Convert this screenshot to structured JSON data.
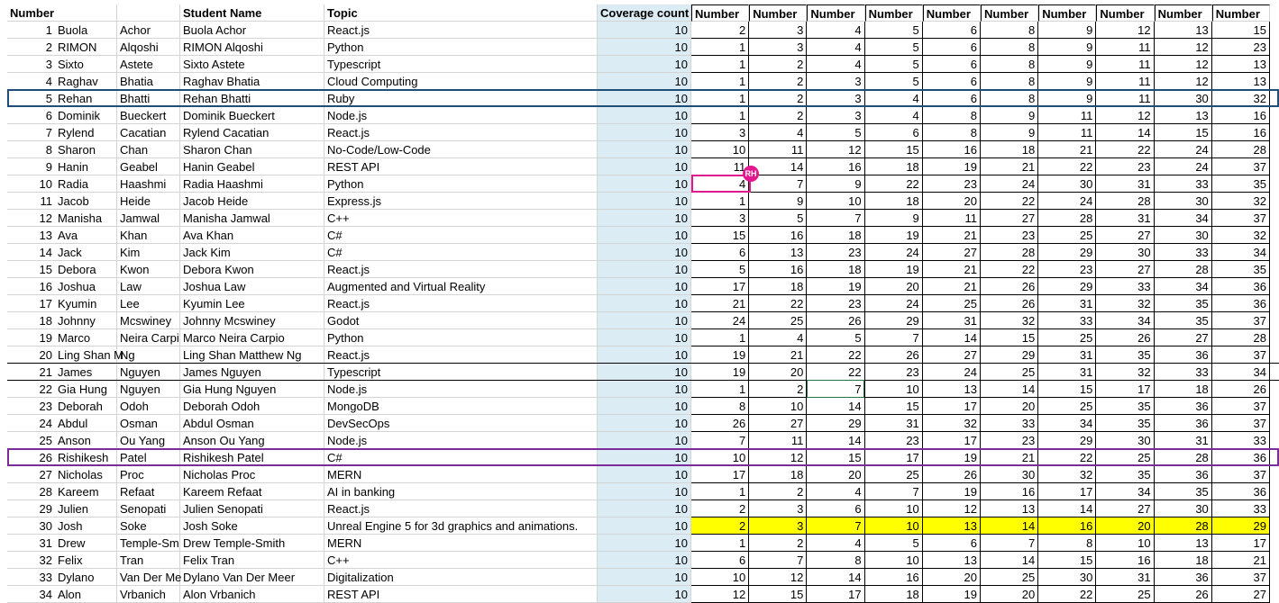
{
  "headers": {
    "number": "Number",
    "first": "",
    "last": "",
    "student_name": "Student Name",
    "topic": "Topic",
    "coverage": "Coverage count",
    "n": [
      "Number",
      "Number",
      "Number",
      "Number",
      "Number",
      "Number",
      "Number",
      "Number",
      "Number",
      "Number"
    ]
  },
  "avatar_initials": "RH",
  "colors": {
    "coverage_fill": "#dbecf4",
    "yellow": "#ffff00",
    "row_box_blue": "#1f4e79",
    "row_box_purple": "#7b2c9a",
    "presence_pink": "#e3178f"
  },
  "rows": [
    {
      "num": "1",
      "first": "Buola",
      "last": "Achor",
      "name": "Buola Achor",
      "topic": "React.js",
      "cov": "10",
      "n": [
        "2",
        "3",
        "4",
        "5",
        "6",
        "8",
        "9",
        "12",
        "13",
        "15"
      ]
    },
    {
      "num": "2",
      "first": "RIMON",
      "last": "Alqoshi",
      "name": "RIMON Alqoshi",
      "topic": "Python",
      "cov": "10",
      "n": [
        "1",
        "3",
        "4",
        "5",
        "6",
        "8",
        "9",
        "11",
        "12",
        "23"
      ]
    },
    {
      "num": "3",
      "first": "Sixto",
      "last": "Astete",
      "name": "Sixto Astete",
      "topic": "Typescript",
      "cov": "10",
      "n": [
        "1",
        "2",
        "4",
        "5",
        "6",
        "8",
        "9",
        "11",
        "12",
        "13"
      ]
    },
    {
      "num": "4",
      "first": "Raghav",
      "last": "Bhatia",
      "name": "Raghav Bhatia",
      "topic": "Cloud Computing",
      "cov": "10",
      "n": [
        "1",
        "2",
        "3",
        "5",
        "6",
        "8",
        "9",
        "11",
        "12",
        "13"
      ]
    },
    {
      "num": "5",
      "first": "Rehan",
      "last": "Bhatti",
      "name": "Rehan Bhatti",
      "topic": "Ruby",
      "cov": "10",
      "n": [
        "1",
        "2",
        "3",
        "4",
        "6",
        "8",
        "9",
        "11",
        "30",
        "32"
      ]
    },
    {
      "num": "6",
      "first": "Dominik",
      "last": "Bueckert",
      "name": "Dominik Bueckert",
      "topic": "Node.js",
      "cov": "10",
      "n": [
        "1",
        "2",
        "3",
        "4",
        "8",
        "9",
        "11",
        "12",
        "13",
        "16"
      ]
    },
    {
      "num": "7",
      "first": "Rylend",
      "last": "Cacatian",
      "name": "Rylend Cacatian",
      "topic": "React.js",
      "cov": "10",
      "n": [
        "3",
        "4",
        "5",
        "6",
        "8",
        "9",
        "11",
        "14",
        "15",
        "16"
      ]
    },
    {
      "num": "8",
      "first": "Sharon",
      "last": "Chan",
      "name": "Sharon Chan",
      "topic": "No-Code/Low-Code",
      "cov": "10",
      "n": [
        "10",
        "11",
        "12",
        "15",
        "16",
        "18",
        "21",
        "22",
        "24",
        "28"
      ]
    },
    {
      "num": "9",
      "first": "Hanin",
      "last": "Geabel",
      "name": "Hanin Geabel",
      "topic": "REST API",
      "cov": "10",
      "n": [
        "11",
        "14",
        "16",
        "18",
        "19",
        "21",
        "22",
        "23",
        "24",
        "37"
      ]
    },
    {
      "num": "10",
      "first": "Radia",
      "last": "Haashmi",
      "name": "Radia Haashmi",
      "topic": "Python",
      "cov": "10",
      "n": [
        "4",
        "7",
        "9",
        "22",
        "23",
        "24",
        "30",
        "31",
        "33",
        "35"
      ]
    },
    {
      "num": "11",
      "first": "Jacob",
      "last": "Heide",
      "name": "Jacob Heide",
      "topic": "Express.js",
      "cov": "10",
      "n": [
        "1",
        "9",
        "10",
        "18",
        "20",
        "22",
        "24",
        "28",
        "30",
        "32"
      ]
    },
    {
      "num": "12",
      "first": "Manisha",
      "last": "Jamwal",
      "name": "Manisha Jamwal",
      "topic": "C++",
      "cov": "10",
      "n": [
        "3",
        "5",
        "7",
        "9",
        "11",
        "27",
        "28",
        "31",
        "34",
        "37"
      ]
    },
    {
      "num": "13",
      "first": "Ava",
      "last": "Khan",
      "name": "Ava Khan",
      "topic": "C#",
      "cov": "10",
      "n": [
        "15",
        "16",
        "18",
        "19",
        "21",
        "23",
        "25",
        "27",
        "30",
        "32"
      ]
    },
    {
      "num": "14",
      "first": "Jack",
      "last": "Kim",
      "name": "Jack Kim",
      "topic": "C#",
      "cov": "10",
      "n": [
        "6",
        "13",
        "23",
        "24",
        "27",
        "28",
        "29",
        "30",
        "33",
        "34"
      ]
    },
    {
      "num": "15",
      "first": "Debora",
      "last": "Kwon",
      "name": "Debora Kwon",
      "topic": "React.js",
      "cov": "10",
      "n": [
        "5",
        "16",
        "18",
        "19",
        "21",
        "22",
        "23",
        "27",
        "28",
        "35"
      ]
    },
    {
      "num": "16",
      "first": "Joshua",
      "last": "Law",
      "name": "Joshua Law",
      "topic": "Augmented and Virtual Reality",
      "cov": "10",
      "n": [
        "17",
        "18",
        "19",
        "20",
        "21",
        "26",
        "29",
        "33",
        "34",
        "36"
      ]
    },
    {
      "num": "17",
      "first": "Kyumin",
      "last": "Lee",
      "name": "Kyumin Lee",
      "topic": "React.js",
      "cov": "10",
      "n": [
        "21",
        "22",
        "23",
        "24",
        "25",
        "26",
        "31",
        "32",
        "35",
        "36"
      ]
    },
    {
      "num": "18",
      "first": "Johnny",
      "last": "Mcswiney",
      "name": "Johnny Mcswiney",
      "topic": "Godot",
      "cov": "10",
      "n": [
        "24",
        "25",
        "26",
        "29",
        "31",
        "32",
        "33",
        "34",
        "35",
        "37"
      ]
    },
    {
      "num": "19",
      "first": "Marco",
      "last": "Neira Carpi",
      "name": "Marco Neira Carpio",
      "topic": "Python",
      "cov": "10",
      "n": [
        "1",
        "4",
        "5",
        "7",
        "14",
        "15",
        "25",
        "26",
        "27",
        "28"
      ]
    },
    {
      "num": "20",
      "first": "Ling Shan M",
      "last": "Ng",
      "name": "Ling Shan Matthew Ng",
      "topic": "React.js",
      "cov": "10",
      "n": [
        "19",
        "21",
        "22",
        "26",
        "27",
        "29",
        "31",
        "35",
        "36",
        "37"
      ]
    },
    {
      "num": "21",
      "first": "James",
      "last": "Nguyen",
      "name": "James Nguyen",
      "topic": "Typescript",
      "cov": "10",
      "n": [
        "19",
        "20",
        "22",
        "23",
        "24",
        "25",
        "31",
        "32",
        "33",
        "34"
      ]
    },
    {
      "num": "22",
      "first": "Gia Hung",
      "last": "Nguyen",
      "name": "Gia Hung Nguyen",
      "topic": "Node.js",
      "cov": "10",
      "n": [
        "1",
        "2",
        "7",
        "10",
        "13",
        "14",
        "15",
        "17",
        "18",
        "26"
      ]
    },
    {
      "num": "23",
      "first": "Deborah",
      "last": "Odoh",
      "name": "Deborah Odoh",
      "topic": "MongoDB",
      "cov": "10",
      "n": [
        "8",
        "10",
        "14",
        "15",
        "17",
        "20",
        "25",
        "35",
        "36",
        "37"
      ]
    },
    {
      "num": "24",
      "first": "Abdul",
      "last": "Osman",
      "name": "Abdul Osman",
      "topic": "DevSecOps",
      "cov": "10",
      "n": [
        "26",
        "27",
        "29",
        "31",
        "32",
        "33",
        "34",
        "35",
        "36",
        "37"
      ]
    },
    {
      "num": "25",
      "first": "Anson",
      "last": "Ou Yang",
      "name": "Anson Ou Yang",
      "topic": "Node.js",
      "cov": "10",
      "n": [
        "7",
        "11",
        "14",
        "23",
        "17",
        "23",
        "29",
        "30",
        "31",
        "33"
      ]
    },
    {
      "num": "26",
      "first": "Rishikesh",
      "last": "Patel",
      "name": "Rishikesh Patel",
      "topic": "C#",
      "cov": "10",
      "n": [
        "10",
        "12",
        "15",
        "17",
        "19",
        "21",
        "22",
        "25",
        "28",
        "36"
      ]
    },
    {
      "num": "27",
      "first": "Nicholas",
      "last": "Proc",
      "name": "Nicholas Proc",
      "topic": "MERN",
      "cov": "10",
      "n": [
        "17",
        "18",
        "20",
        "25",
        "26",
        "30",
        "32",
        "35",
        "36",
        "37"
      ]
    },
    {
      "num": "28",
      "first": "Kareem",
      "last": "Refaat",
      "name": "Kareem Refaat",
      "topic": "AI in banking",
      "cov": "10",
      "n": [
        "1",
        "2",
        "4",
        "7",
        "19",
        "16",
        "17",
        "34",
        "35",
        "36"
      ]
    },
    {
      "num": "29",
      "first": "Julien",
      "last": "Senopati",
      "name": "Julien Senopati",
      "topic": "React.js",
      "cov": "10",
      "n": [
        "2",
        "3",
        "6",
        "10",
        "12",
        "13",
        "14",
        "27",
        "30",
        "33"
      ]
    },
    {
      "num": "30",
      "first": "Josh",
      "last": "Soke",
      "name": "Josh Soke",
      "topic": "Unreal Engine 5 for 3d graphics and animations.",
      "cov": "10",
      "n": [
        "2",
        "3",
        "7",
        "10",
        "13",
        "14",
        "16",
        "20",
        "28",
        "29"
      ]
    },
    {
      "num": "31",
      "first": "Drew",
      "last": "Temple-Sm",
      "name": "Drew Temple-Smith",
      "topic": "MERN",
      "cov": "10",
      "n": [
        "1",
        "2",
        "4",
        "5",
        "6",
        "7",
        "8",
        "10",
        "13",
        "17"
      ]
    },
    {
      "num": "32",
      "first": "Felix",
      "last": "Tran",
      "name": "Felix Tran",
      "topic": "C++",
      "cov": "10",
      "n": [
        "6",
        "7",
        "8",
        "10",
        "13",
        "14",
        "15",
        "16",
        "18",
        "21"
      ]
    },
    {
      "num": "33",
      "first": "Dylano",
      "last": "Van Der Me",
      "name": "Dylano Van Der Meer",
      "topic": "Digitalization",
      "cov": "10",
      "n": [
        "10",
        "12",
        "14",
        "16",
        "20",
        "25",
        "30",
        "31",
        "36",
        "37"
      ]
    },
    {
      "num": "34",
      "first": "Alon",
      "last": "Vrbanich",
      "name": "Alon Vrbanich",
      "topic": "REST API",
      "cov": "10",
      "n": [
        "12",
        "15",
        "17",
        "18",
        "19",
        "20",
        "22",
        "25",
        "26",
        "27"
      ]
    }
  ]
}
